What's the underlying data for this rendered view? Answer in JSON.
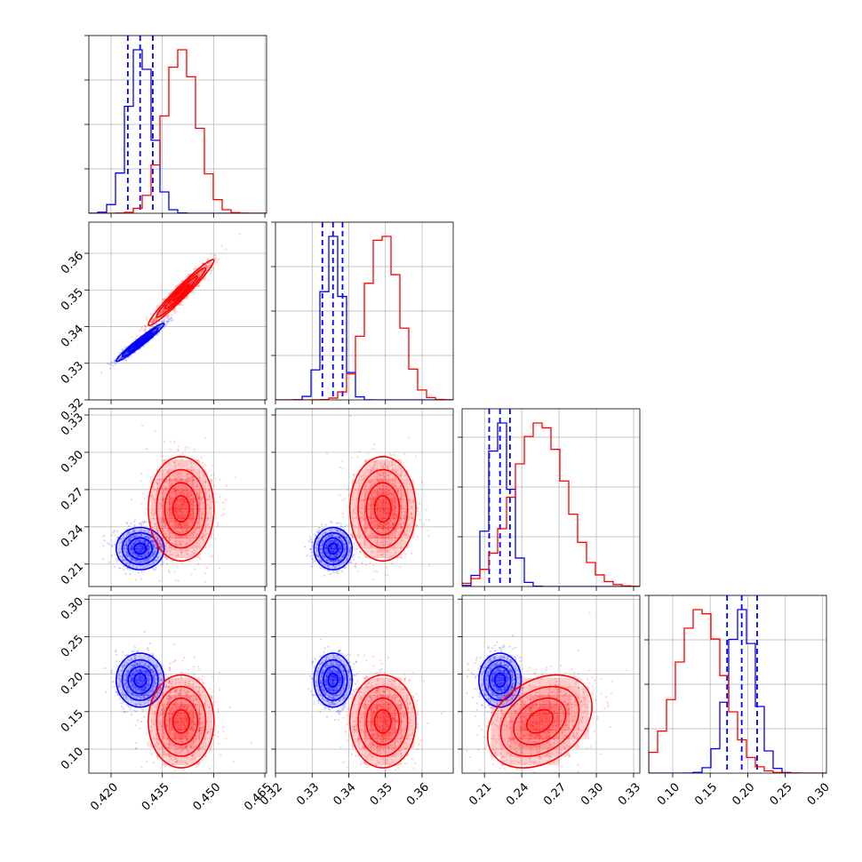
{
  "chart_data": {
    "type": "corner",
    "params": [
      {
        "ticks": [
          0.42,
          0.435,
          0.45,
          0.465
        ],
        "tick_labels": [
          "0.420",
          "0.435",
          "0.450",
          "0.465"
        ],
        "range": [
          0.4135,
          0.4655
        ]
      },
      {
        "ticks": [
          0.32,
          0.33,
          0.34,
          0.35,
          0.36
        ],
        "tick_labels": [
          "0.32",
          "0.33",
          "0.34",
          "0.35",
          "0.36"
        ],
        "range": [
          0.32,
          0.3685
        ]
      },
      {
        "ticks": [
          0.21,
          0.24,
          0.27,
          0.3,
          0.33
        ],
        "tick_labels": [
          "0.21",
          "0.24",
          "0.27",
          "0.30",
          "0.33"
        ],
        "range": [
          0.192,
          0.335
        ]
      },
      {
        "ticks": [
          0.1,
          0.15,
          0.2,
          0.25,
          0.3
        ],
        "tick_labels": [
          "0.10",
          "0.15",
          "0.20",
          "0.25",
          "0.30"
        ],
        "range": [
          0.068,
          0.305
        ]
      }
    ],
    "hist_yticks": [
      [
        0.25,
        0.5,
        0.75,
        1.0
      ],
      [
        0.25,
        0.5,
        0.75,
        1.0
      ],
      [
        0.28,
        0.56,
        0.84,
        1.12
      ],
      [
        0.25,
        0.5,
        0.75,
        1.0
      ]
    ],
    "series": [
      {
        "color": "#0000ff",
        "means": [
          0.4285,
          0.3357,
          0.2225,
          0.192
        ],
        "sigmas": [
          0.0035,
          0.0026,
          0.0085,
          0.018
        ],
        "quantiles": [
          [
            0.4249,
            0.4285,
            0.4322
          ],
          [
            0.3328,
            0.3357,
            0.3383
          ],
          [
            0.2138,
            0.2225,
            0.2305
          ],
          [
            0.1725,
            0.192,
            0.2125
          ]
        ],
        "correlations": [
          [
            0,
            1,
            0.97
          ]
        ]
      },
      {
        "color": "#ff0000",
        "means": [
          0.4405,
          0.3493,
          0.2545,
          0.137
        ],
        "sigmas": [
          0.0048,
          0.0045,
          0.021,
          0.031
        ],
        "correlations": [
          [
            0,
            1,
            0.97
          ],
          [
            2,
            3,
            0.32
          ]
        ]
      }
    ],
    "hist_bins": 20,
    "quantile_line_style": "dashed",
    "contour_levels_sigma": [
      0.5,
      1.0,
      1.5,
      2.0
    ],
    "grid": true
  }
}
